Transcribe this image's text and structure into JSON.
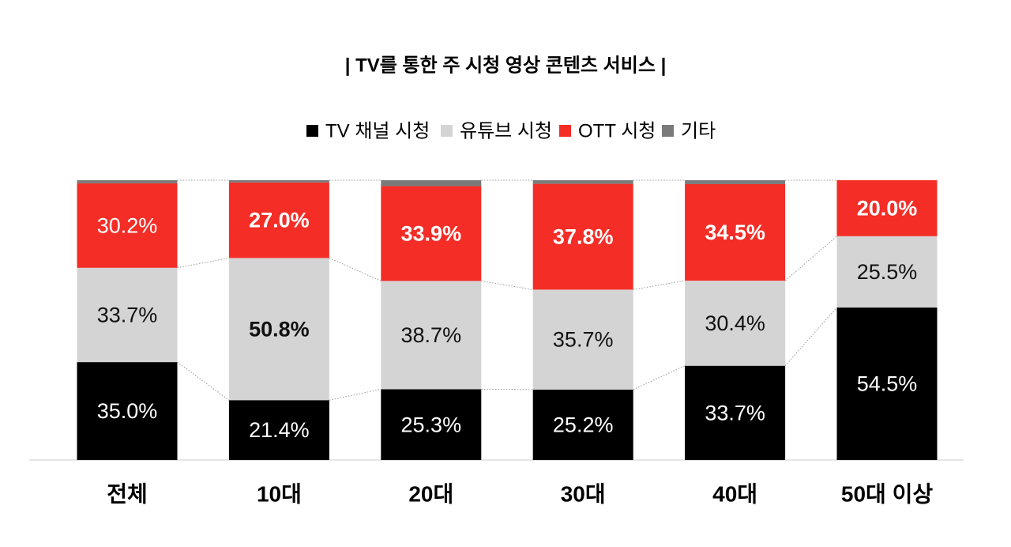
{
  "chart_data": {
    "type": "stacked_bar",
    "title": "| TV를 통한 주 시청 영상 콘텐츠 서비스 |",
    "categories": [
      "전체",
      "10대",
      "20대",
      "30대",
      "40대",
      "50대 이상"
    ],
    "ylim": [
      0,
      100
    ],
    "series": [
      {
        "name": "TV 채널 시청",
        "color": "#000000",
        "label_color": "#ffffff",
        "values": [
          35.0,
          21.4,
          25.3,
          25.2,
          33.7,
          54.5
        ],
        "value_labels": [
          "35.0%",
          "21.4%",
          "25.3%",
          "25.2%",
          "33.7%",
          "54.5%"
        ],
        "bold": [
          false,
          false,
          false,
          false,
          false,
          false
        ]
      },
      {
        "name": "유튜브 시청",
        "color": "#d4d4d4",
        "label_color": "#111111",
        "values": [
          33.7,
          50.8,
          38.7,
          35.7,
          30.4,
          25.5
        ],
        "value_labels": [
          "33.7%",
          "50.8%",
          "38.7%",
          "35.7%",
          "30.4%",
          "25.5%"
        ],
        "bold": [
          false,
          true,
          false,
          false,
          false,
          false
        ]
      },
      {
        "name": "OTT 시청",
        "color": "#f42d26",
        "label_color": "#ffffff",
        "values": [
          30.2,
          27.0,
          33.9,
          37.8,
          34.5,
          20.0
        ],
        "value_labels": [
          "30.2%",
          "27.0%",
          "33.9%",
          "37.8%",
          "34.5%",
          "20.0%"
        ],
        "bold": [
          false,
          true,
          true,
          true,
          true,
          true
        ]
      },
      {
        "name": "기타",
        "color": "#7a7a7a",
        "values": [
          1.1,
          0.8,
          2.1,
          1.3,
          1.4,
          0.0
        ]
      }
    ]
  }
}
